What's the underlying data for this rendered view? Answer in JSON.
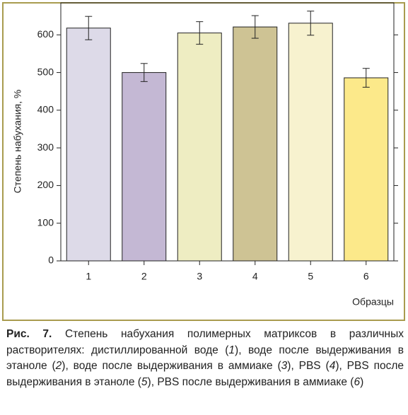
{
  "chart_data": {
    "type": "bar",
    "y_label": "Степень набухания, %",
    "x_label": "Образцы",
    "categories": [
      "1",
      "2",
      "3",
      "4",
      "5",
      "6"
    ],
    "values": [
      618,
      500,
      605,
      621,
      631,
      486
    ],
    "errors": [
      31,
      24,
      30,
      30,
      32,
      25
    ],
    "colors": [
      "#dddae8",
      "#c4b8d4",
      "#eeedc2",
      "#cec394",
      "#f7f2cf",
      "#fce98a"
    ],
    "ylim": [
      0,
      685
    ],
    "yticks": [
      0,
      100,
      200,
      300,
      400,
      500,
      600
    ],
    "grid": false
  },
  "caption": {
    "label": "Рис. 7.",
    "segments": [
      "Степень набухания полимерных матриксов в различных растворителях: дистиллированной воде (",
      "1",
      "), воде после выдерживания в этаноле (",
      "2",
      "), воде после выдерживания в аммиаке (",
      "3",
      "), PBS (",
      "4",
      "), PBS после выдерживания в этаноле (",
      "5",
      "), PBS после выдерживания в аммиаке (",
      "6",
      ")"
    ]
  }
}
